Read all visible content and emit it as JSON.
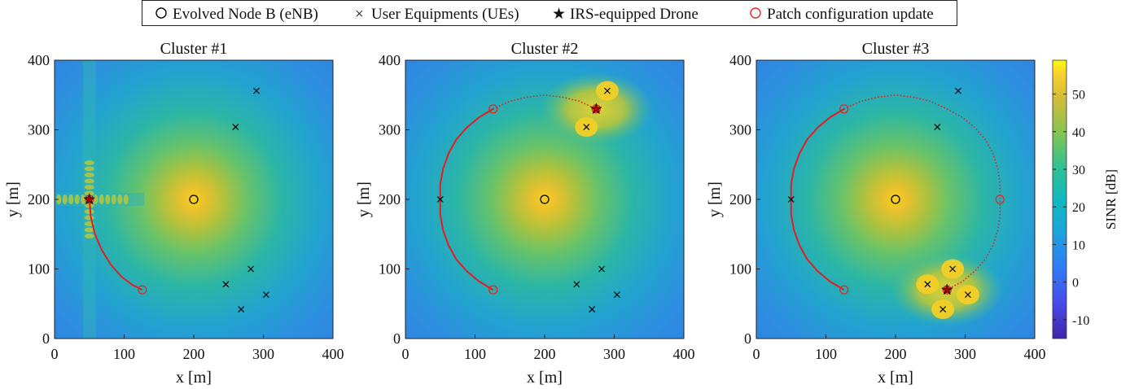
{
  "legend": {
    "enb": "Evolved Node B (eNB)",
    "ue": "User Equipments (UEs)",
    "drone": "IRS-equipped Drone",
    "update": "Patch configuration update"
  },
  "colors": {
    "enb": "#000000",
    "ue": "#000000",
    "drone": "#b00000",
    "update": "#e8251f",
    "path": "#e02020"
  },
  "colorbar": {
    "label": "SINR [dB]",
    "ticks": [
      -10,
      0,
      10,
      20,
      30,
      40,
      50
    ],
    "range": [
      -15,
      59
    ],
    "colormap": "parula"
  },
  "chart_data": [
    {
      "type": "heatmap",
      "title": "Cluster #1",
      "xlabel": "x [m]",
      "ylabel": "y [m]",
      "xlim": [
        0,
        400
      ],
      "ylim": [
        0,
        400
      ],
      "xticks": [
        0,
        100,
        200,
        300,
        400
      ],
      "yticks": [
        0,
        100,
        200,
        300,
        400
      ],
      "enb": [
        200,
        200
      ],
      "ues": [
        [
          290,
          356
        ],
        [
          260,
          304
        ],
        [
          282,
          100
        ],
        [
          246,
          78
        ],
        [
          304,
          63
        ],
        [
          268,
          42
        ]
      ],
      "drone": [
        50,
        200
      ],
      "patch_updates": [
        [
          50,
          200
        ],
        [
          126,
          70
        ]
      ],
      "path_solid": [
        [
          50,
          200
        ],
        [
          52,
          175
        ],
        [
          58,
          150
        ],
        [
          68,
          127
        ],
        [
          81,
          106
        ],
        [
          96,
          89
        ],
        [
          112,
          77
        ],
        [
          126,
          70
        ]
      ],
      "path_dotted": []
    },
    {
      "type": "heatmap",
      "title": "Cluster #2",
      "xlabel": "x [m]",
      "ylabel": "y [m]",
      "xlim": [
        0,
        400
      ],
      "ylim": [
        0,
        400
      ],
      "xticks": [
        0,
        100,
        200,
        300,
        400
      ],
      "yticks": [
        0,
        100,
        200,
        300,
        400
      ],
      "enb": [
        200,
        200
      ],
      "ues": [
        [
          290,
          356
        ],
        [
          260,
          304
        ],
        [
          50,
          200
        ],
        [
          282,
          100
        ],
        [
          246,
          78
        ],
        [
          304,
          63
        ],
        [
          268,
          42
        ]
      ],
      "drone": [
        274,
        330
      ],
      "patch_updates": [
        [
          126,
          70
        ],
        [
          126,
          330
        ],
        [
          274,
          330
        ]
      ],
      "path_solid": [
        [
          126,
          70
        ],
        [
          106,
          82
        ],
        [
          88,
          97
        ],
        [
          73,
          114
        ],
        [
          62,
          134
        ],
        [
          54,
          156
        ],
        [
          50,
          178
        ],
        [
          50,
          200
        ],
        [
          50,
          222
        ],
        [
          54,
          244
        ],
        [
          62,
          266
        ],
        [
          73,
          286
        ],
        [
          88,
          303
        ],
        [
          106,
          318
        ],
        [
          126,
          330
        ]
      ],
      "path_dotted": [
        [
          126,
          330
        ],
        [
          150,
          341
        ],
        [
          175,
          347
        ],
        [
          200,
          350
        ],
        [
          225,
          347
        ],
        [
          250,
          341
        ],
        [
          274,
          330
        ]
      ]
    },
    {
      "type": "heatmap",
      "title": "Cluster #3",
      "xlabel": "x [m]",
      "ylabel": "y [m]",
      "xlim": [
        0,
        400
      ],
      "ylim": [
        0,
        400
      ],
      "xticks": [
        0,
        100,
        200,
        300,
        400
      ],
      "yticks": [
        0,
        100,
        200,
        300,
        400
      ],
      "enb": [
        200,
        200
      ],
      "ues": [
        [
          290,
          356
        ],
        [
          260,
          304
        ],
        [
          50,
          200
        ],
        [
          282,
          100
        ],
        [
          246,
          78
        ],
        [
          304,
          63
        ],
        [
          268,
          42
        ]
      ],
      "drone": [
        274,
        70
      ],
      "patch_updates": [
        [
          126,
          70
        ],
        [
          126,
          330
        ],
        [
          350,
          200
        ],
        [
          274,
          70
        ]
      ],
      "path_solid": [
        [
          126,
          70
        ],
        [
          106,
          82
        ],
        [
          88,
          97
        ],
        [
          73,
          114
        ],
        [
          62,
          134
        ],
        [
          54,
          156
        ],
        [
          50,
          178
        ],
        [
          50,
          200
        ],
        [
          50,
          222
        ],
        [
          54,
          244
        ],
        [
          62,
          266
        ],
        [
          73,
          286
        ],
        [
          88,
          303
        ],
        [
          106,
          318
        ],
        [
          126,
          330
        ]
      ],
      "path_dotted": [
        [
          126,
          330
        ],
        [
          150,
          341
        ],
        [
          175,
          347
        ],
        [
          200,
          350
        ],
        [
          225,
          347
        ],
        [
          250,
          341
        ],
        [
          274,
          330
        ],
        [
          296,
          318
        ],
        [
          314,
          303
        ],
        [
          329,
          286
        ],
        [
          340,
          266
        ],
        [
          347,
          244
        ],
        [
          350,
          222
        ],
        [
          350,
          200
        ],
        [
          350,
          178
        ],
        [
          347,
          156
        ],
        [
          340,
          134
        ],
        [
          329,
          114
        ],
        [
          314,
          97
        ],
        [
          296,
          82
        ],
        [
          274,
          70
        ]
      ]
    }
  ]
}
